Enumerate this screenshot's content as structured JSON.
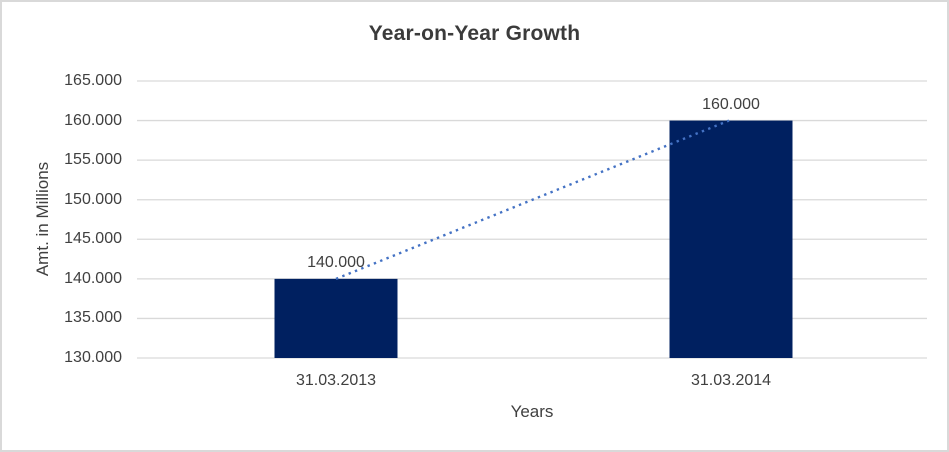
{
  "chart_data": {
    "type": "bar",
    "title": "Year-on-Year Growth",
    "xlabel": "Years",
    "ylabel": "Amt. in Millions",
    "categories": [
      "31.03.2013",
      "31.03.2014"
    ],
    "values": [
      140000,
      160000
    ],
    "data_labels": [
      "140.000",
      "160.000"
    ],
    "y_ticks": [
      {
        "value": 165000,
        "label": "165.000"
      },
      {
        "value": 160000,
        "label": "160.000"
      },
      {
        "value": 155000,
        "label": "155.000"
      },
      {
        "value": 150000,
        "label": "150.000"
      },
      {
        "value": 145000,
        "label": "145.000"
      },
      {
        "value": 140000,
        "label": "140.000"
      },
      {
        "value": 135000,
        "label": "135.000"
      },
      {
        "value": 130000,
        "label": "130.000"
      }
    ],
    "ylim": [
      130000,
      165000
    ],
    "grid": true,
    "legend_position": "none",
    "trendline": {
      "style": "dotted",
      "from_value": 140000,
      "to_value": 160000
    },
    "colors": {
      "bar": "#002060",
      "trendline": "#4472C4",
      "gridline": "#d9d9d9",
      "text": "#404040",
      "title": "#3b3b3b",
      "background": "#ffffff",
      "border": "#d9d9d9"
    }
  }
}
